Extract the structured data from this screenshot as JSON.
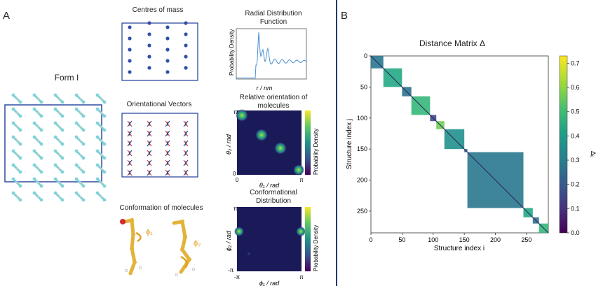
{
  "panel_a": {
    "letter": "A",
    "form_label": "Form I",
    "com_title": "Centres of mass",
    "vec_title": "Orientational Vectors",
    "conf_title": "Conformation of molecules",
    "phi1": "ϕ₁",
    "phi2": "ϕ₂",
    "rdf": {
      "title_line1": "Radial Distribution",
      "title_line2": "Function",
      "ylabel": "Probability Density",
      "xlabel": "r / nm"
    },
    "rel_orient": {
      "title_line1": "Relative orientation of",
      "title_line2": "molecules",
      "ylabel": "θ₂ / rad",
      "xlabel": "θ₁ / rad",
      "tick_y_top": "π",
      "tick_y_bottom": "0",
      "tick_x_left": "0",
      "tick_x_right": "π",
      "colorbar_label": "Probability Density"
    },
    "conf_dist": {
      "title_line1": "Conformational",
      "title_line2": "Distribution",
      "ylabel": "ϕ₂ / rad",
      "xlabel": "ϕ₁ / rad",
      "tick_y_top": "π",
      "tick_y_bottom": "-π",
      "tick_x_left": "-π",
      "tick_x_right": "π",
      "colorbar_label": "Probability Density"
    }
  },
  "panel_b": {
    "letter": "B",
    "title": "Distance Matrix Δ",
    "xlabel": "Structure index i",
    "ylabel": "Structure index j",
    "colorbar_label": "Δᵢⱼ",
    "x_ticks": [
      "0",
      "50",
      "100",
      "150",
      "200",
      "250"
    ],
    "y_ticks": [
      "0",
      "50",
      "100",
      "150",
      "200",
      "250"
    ],
    "colorbar_ticks": [
      "0.0",
      "0.1",
      "0.2",
      "0.3",
      "0.4",
      "0.5",
      "0.6",
      "0.7"
    ]
  },
  "chart_data": {
    "type": "heatmap",
    "title": "Distance Matrix Δ",
    "xlabel": "Structure index i",
    "ylabel": "Structure index j",
    "xlim": [
      0,
      285
    ],
    "ylim": [
      285,
      0
    ],
    "colorbar_range": [
      0.0,
      0.73
    ],
    "diagonal_blocks": [
      {
        "start": 0,
        "end": 20
      },
      {
        "start": 20,
        "end": 50
      },
      {
        "start": 50,
        "end": 65
      },
      {
        "start": 65,
        "end": 95
      },
      {
        "start": 95,
        "end": 105
      },
      {
        "start": 105,
        "end": 118
      },
      {
        "start": 118,
        "end": 150
      },
      {
        "start": 150,
        "end": 155
      },
      {
        "start": 155,
        "end": 245
      },
      {
        "start": 245,
        "end": 260
      },
      {
        "start": 260,
        "end": 270
      },
      {
        "start": 270,
        "end": 285
      }
    ]
  }
}
